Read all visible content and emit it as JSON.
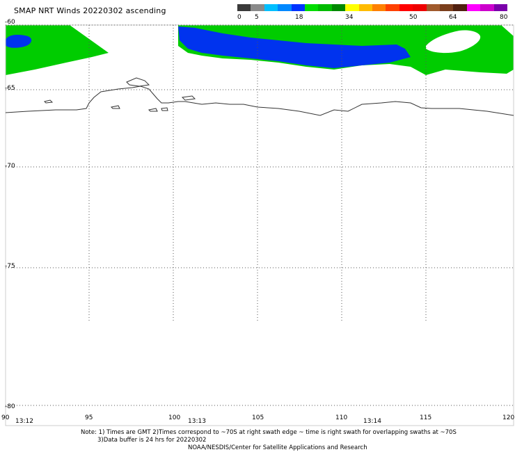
{
  "title": "SMAP NRT Winds 20220302 ascending",
  "legend": {
    "colors": [
      "#3a3a3a",
      "#8a8a8a",
      "#00bfff",
      "#0088ff",
      "#0033ff",
      "#00dd00",
      "#00bb00",
      "#008800",
      "#ffff00",
      "#ffbb00",
      "#ff8000",
      "#ff4000",
      "#ff0000",
      "#ee0000",
      "#a05a2c",
      "#7a3e1c",
      "#502010",
      "#ff00ff",
      "#cc00cc",
      "#7a00aa"
    ],
    "ticks": [
      "0",
      "5",
      "18",
      "34",
      "50",
      "64",
      "80"
    ]
  },
  "map": {
    "lat_labels": [
      "-60",
      "-65",
      "-70",
      "-75",
      "-80"
    ],
    "lon_labels": [
      "90",
      "95",
      "100",
      "105",
      "110",
      "115",
      "120"
    ],
    "time_labels": [
      "13:12",
      "13:13",
      "13:14"
    ],
    "wind_colors": {
      "moderate": "#00cc00",
      "low": "#0033ee"
    }
  },
  "notes": {
    "line1": "Note: 1) Times are GMT 2)Times correspond to ~70S at right swath edge ~ time is right swath for overlapping swaths at ~70S",
    "line2": "3)Data buffer is 24 hrs for 20220302",
    "credit": "NOAA/NESDIS/Center for Satellite Applications and Research"
  }
}
